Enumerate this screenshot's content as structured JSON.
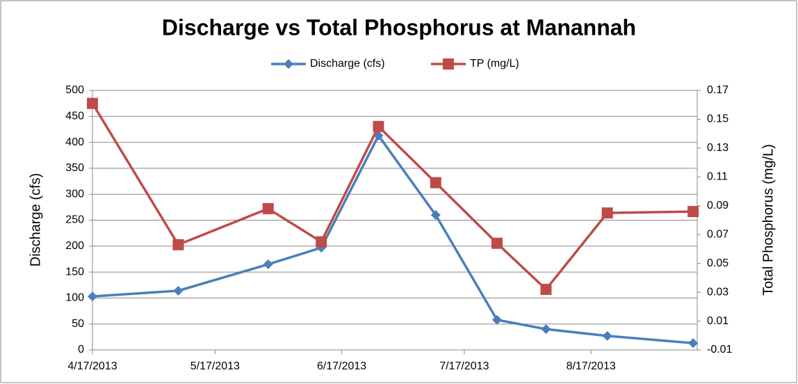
{
  "chart_data": {
    "type": "line",
    "title": "Discharge vs Total Phosphorus at Manannah",
    "ylabel": "Discharge (cfs)",
    "y2label": "Total Phosphorus  (mg/L)",
    "x": [
      "2013-04-17",
      "2013-05-08",
      "2013-05-30",
      "2013-06-12",
      "2013-06-26",
      "2013-07-10",
      "2013-07-25",
      "2013-08-06",
      "2013-08-21",
      "2013-09-11"
    ],
    "xlim": [
      "2013-04-17",
      "2013-09-12"
    ],
    "xticks": [
      {
        "value": "2013-04-17",
        "label": "4/17/2013"
      },
      {
        "value": "2013-05-17",
        "label": "5/17/2013"
      },
      {
        "value": "2013-06-17",
        "label": "6/17/2013"
      },
      {
        "value": "2013-07-17",
        "label": "7/17/2013"
      },
      {
        "value": "2013-08-17",
        "label": "8/17/2013"
      }
    ],
    "ylim": [
      0,
      500
    ],
    "yticks": [
      0,
      50,
      100,
      150,
      200,
      250,
      300,
      350,
      400,
      450,
      500
    ],
    "y2lim": [
      -0.01,
      0.17
    ],
    "y2ticks": [
      -0.01,
      0.01,
      0.03,
      0.05,
      0.07,
      0.09,
      0.11,
      0.13,
      0.15,
      0.17
    ],
    "grid": true,
    "legend": "top",
    "series": [
      {
        "name": "Discharge (cfs)",
        "color": "#4a7ebb",
        "marker": "diamond",
        "values": [
          103,
          114,
          165,
          197,
          413,
          260,
          58,
          40,
          27,
          13
        ]
      },
      {
        "name": "TP (mg/L)",
        "color": "#be4b48",
        "marker": "square",
        "axis": "y2",
        "values": [
          0.161,
          0.063,
          0.088,
          0.065,
          0.145,
          0.106,
          0.064,
          0.032,
          0.085,
          0.086
        ]
      }
    ]
  }
}
